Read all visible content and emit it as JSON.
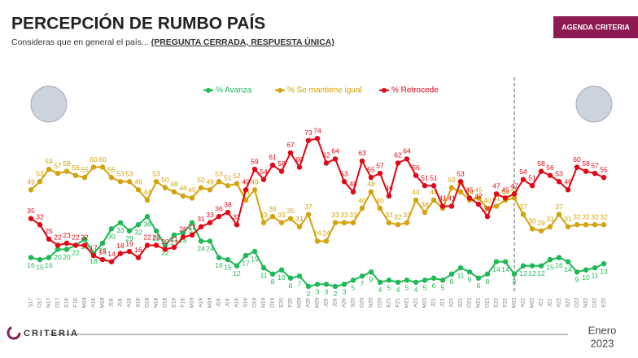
{
  "header": {
    "title": "PERCEPCIÓN DE RUMBO PAÍS",
    "subtitle": "Consideras que en general el país...",
    "subtitle_note": "(PREGUNTA CERRADA, RESPUESTA ÚNICA)",
    "badge": "AGENDA CRITERIA"
  },
  "footer": {
    "logo": "CRITERIA",
    "month": "Enero",
    "year": "2023"
  },
  "chart_data": {
    "type": "line",
    "categories": [
      "S17",
      "O17",
      "N17",
      "D17",
      "E18",
      "F18",
      "M18",
      "A18",
      "M18",
      "J18",
      "J18",
      "A18",
      "S18",
      "O18",
      "N18",
      "D18",
      "E19",
      "F19",
      "M19",
      "A19",
      "M19",
      "J19",
      "J19",
      "A19",
      "S19",
      "O19",
      "N19",
      "D19",
      "E20",
      "F20",
      "M20",
      "A20",
      "M20",
      "J20",
      "J20",
      "A20",
      "S20",
      "O20",
      "N20",
      "D20",
      "E21",
      "F21",
      "M21",
      "A21",
      "M21",
      "J21",
      "J21",
      "A21",
      "S21",
      "O21",
      "N21",
      "D21",
      "E22",
      "F22",
      "M22",
      "A22",
      "M22",
      "J22",
      "J22",
      "A22",
      "S22",
      "O22",
      "N22",
      "D22",
      "E23"
    ],
    "ylim": [
      0,
      80
    ],
    "series": [
      {
        "name": "% Avanza",
        "color": "#1db954",
        "values": [
          16,
          15,
          16,
          20,
          20,
          22,
          25,
          18,
          23,
          30,
          33,
          29,
          32,
          36,
          29,
          22,
          27,
          28,
          33,
          24,
          24,
          16,
          15,
          12,
          17,
          19,
          11,
          8,
          10,
          6,
          7,
          2,
          3,
          3,
          2,
          3,
          5,
          7,
          9,
          4,
          5,
          4,
          5,
          4,
          5,
          6,
          5,
          8,
          11,
          9,
          6,
          8,
          14,
          14,
          8,
          12,
          12,
          12,
          15,
          16,
          14,
          9,
          10,
          11,
          13
        ]
      },
      {
        "name": "% Se mantiene igual",
        "color": "#d4a20a",
        "values": [
          49,
          53,
          59,
          57,
          58,
          56,
          55,
          60,
          60,
          55,
          53,
          53,
          49,
          44,
          53,
          50,
          48,
          46,
          45,
          50,
          49,
          53,
          51,
          52,
          44,
          49,
          33,
          36,
          33,
          35,
          31,
          37,
          24,
          24,
          33,
          33,
          33,
          40,
          48,
          40,
          33,
          32,
          33,
          44,
          38,
          44,
          40,
          50,
          48,
          44,
          45,
          40,
          41,
          44,
          45,
          37,
          30,
          29,
          31,
          37,
          31,
          32,
          32,
          32,
          32
        ]
      },
      {
        "name": "% Retrocede",
        "color": "#e30613",
        "values": [
          35,
          32,
          25,
          22,
          23,
          22,
          22,
          17,
          15,
          14,
          18,
          19,
          16,
          22,
          22,
          20,
          21,
          26,
          27,
          31,
          33,
          36,
          38,
          32,
          49,
          59,
          54,
          61,
          58,
          67,
          60,
          73,
          74,
          62,
          64,
          53,
          48,
          63,
          55,
          57,
          46,
          62,
          64,
          56,
          51,
          51,
          41,
          41,
          53,
          45,
          42,
          36,
          47,
          45,
          47,
          54,
          51,
          58,
          56,
          53,
          49,
          60,
          58,
          57,
          55
        ]
      }
    ]
  }
}
